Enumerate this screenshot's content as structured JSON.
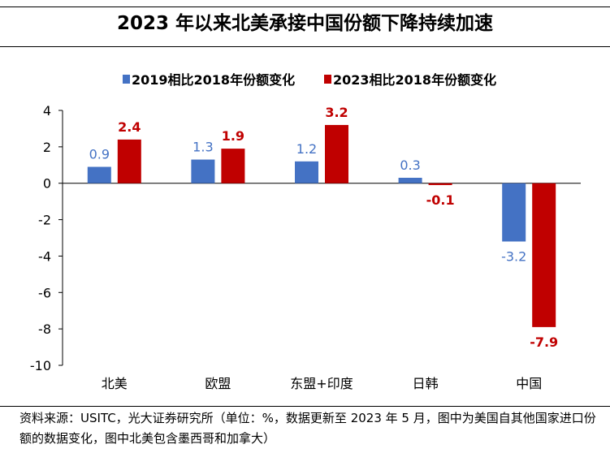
{
  "title": "2023 年以来北美承接中国份额下降持续加速",
  "source_note": "资料来源：USITC，光大证券研究所（单位：%，数据更新至 2023 年 5 月，图中为美国自其他国家进口份额的数据变化，图中北美包含墨西哥和加拿大）",
  "colors": {
    "series_2019": "#4472C4",
    "series_2023": "#C00000"
  },
  "chart_data": {
    "type": "bar",
    "categories": [
      "北美",
      "欧盟",
      "东盟+印度",
      "日韩",
      "中国"
    ],
    "series": [
      {
        "name": "2019相比2018年份额变化",
        "values": [
          0.9,
          1.3,
          1.2,
          0.3,
          -3.2
        ],
        "labels": [
          "0.9",
          "1.3",
          "1.2",
          "0.3",
          "-3.2"
        ]
      },
      {
        "name": "2023相比2018年份额变化",
        "values": [
          2.4,
          1.9,
          3.2,
          -0.1,
          -7.9
        ],
        "labels": [
          "2.4",
          "1.9",
          "3.2",
          "-0.1",
          "-7.9"
        ]
      }
    ],
    "ylim": [
      -10,
      4
    ],
    "yticks": [
      "4",
      "2",
      "0",
      "-2",
      "-4",
      "-6",
      "-8",
      "-10"
    ],
    "legend_position": "top",
    "grid": false
  }
}
